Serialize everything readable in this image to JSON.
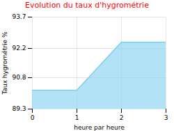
{
  "chart_data": {
    "type": "area",
    "title": "Evolution du taux d'hygrométrie",
    "xlabel": "heure par heure",
    "ylabel": "Taux hygrométrie %",
    "x": [
      0,
      1,
      2,
      3
    ],
    "values": [
      90.2,
      90.2,
      92.5,
      92.5
    ],
    "color": "#7ECFEE",
    "xlim": [
      0,
      3
    ],
    "ylim": [
      89.3,
      93.7
    ],
    "xticks": [
      0,
      1,
      2,
      3
    ],
    "yticks": [
      89.3,
      90.8,
      92.2,
      93.7
    ],
    "grid": true
  }
}
